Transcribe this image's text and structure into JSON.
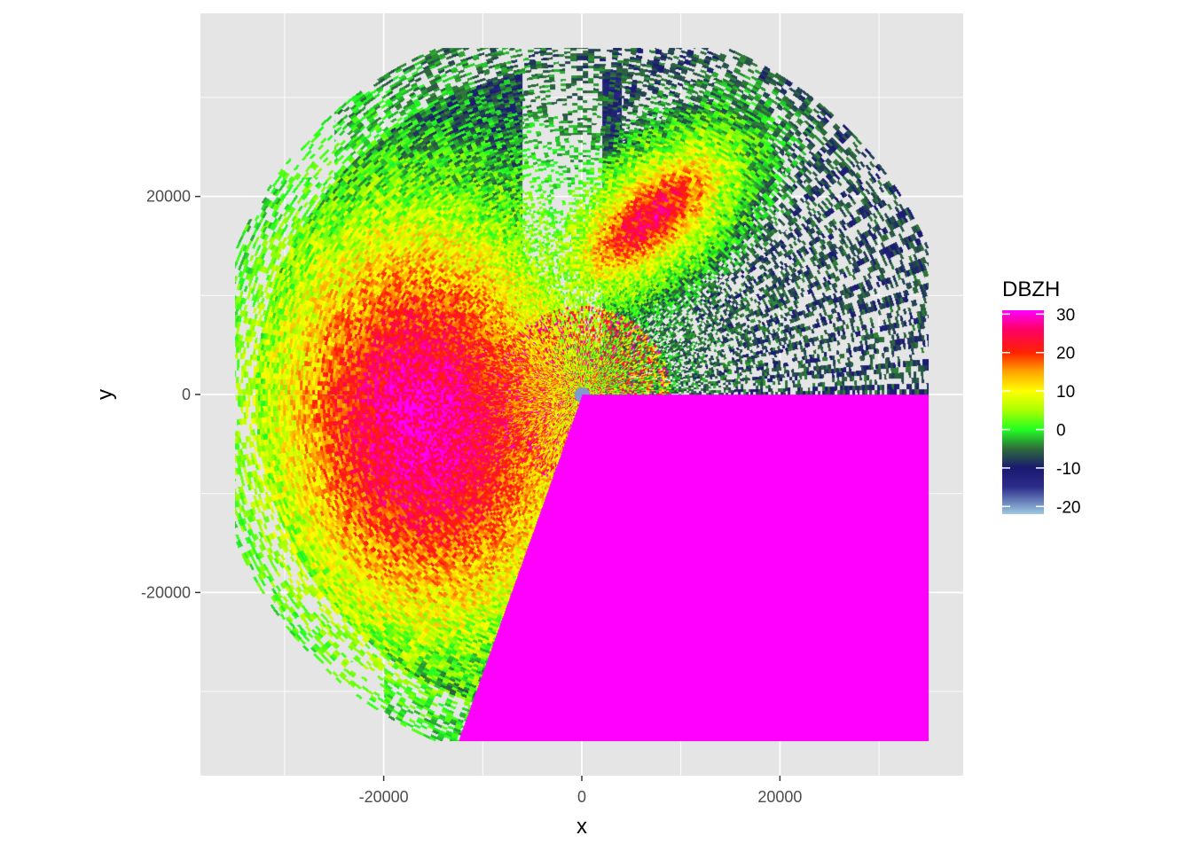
{
  "chart_data": {
    "type": "heatmap",
    "title": "",
    "xlabel": "x",
    "ylabel": "y",
    "xlim": [
      -38500,
      38500
    ],
    "ylim": [
      -38500,
      38500
    ],
    "x_ticks": [
      -20000,
      0,
      20000
    ],
    "x_tick_labels": [
      "-20000",
      "0",
      "20000"
    ],
    "y_ticks": [
      -20000,
      0,
      20000
    ],
    "y_tick_labels": [
      "-20000",
      "0",
      "20000"
    ],
    "grid": true,
    "panel_background": "#e5e5e5",
    "grid_color": "#ffffff",
    "data_extent": {
      "x": [
        -35000,
        35000
      ],
      "y": [
        -35000,
        35000
      ]
    },
    "legend": {
      "title": "DBZH",
      "placement": "right",
      "range": [
        -22,
        31
      ],
      "breaks": [
        30,
        20,
        10,
        0,
        -10,
        -20
      ],
      "break_labels": [
        "30",
        "20",
        "10",
        "0",
        "-10",
        "-20"
      ],
      "colors": [
        {
          "value": -22,
          "color": "#9ecae1"
        },
        {
          "value": -15,
          "color": "#2d2d8c"
        },
        {
          "value": -10,
          "color": "#191970"
        },
        {
          "value": -5,
          "color": "#2e6b3a"
        },
        {
          "value": 0,
          "color": "#22ff22"
        },
        {
          "value": 5,
          "color": "#aaff00"
        },
        {
          "value": 10,
          "color": "#ffff00"
        },
        {
          "value": 15,
          "color": "#ffa500"
        },
        {
          "value": 20,
          "color": "#ff2200"
        },
        {
          "value": 26,
          "color": "#ff0066"
        },
        {
          "value": 31,
          "color": "#ff00ff"
        }
      ]
    },
    "regions": [
      {
        "name": "near-range clutter",
        "description_values": "range 0 to 10000 m, mixed -20 to 30 dBZ"
      },
      {
        "name": "western precipitation core",
        "value_max": 25,
        "center": [
          -15000,
          -3000
        ]
      },
      {
        "name": "north-east precipitation band",
        "value_max": 24,
        "center": [
          7000,
          18000
        ]
      },
      {
        "name": "saturated sector",
        "value": 31,
        "x_range": [
          0,
          35000
        ],
        "y_range": [
          -35000,
          0
        ]
      }
    ]
  }
}
